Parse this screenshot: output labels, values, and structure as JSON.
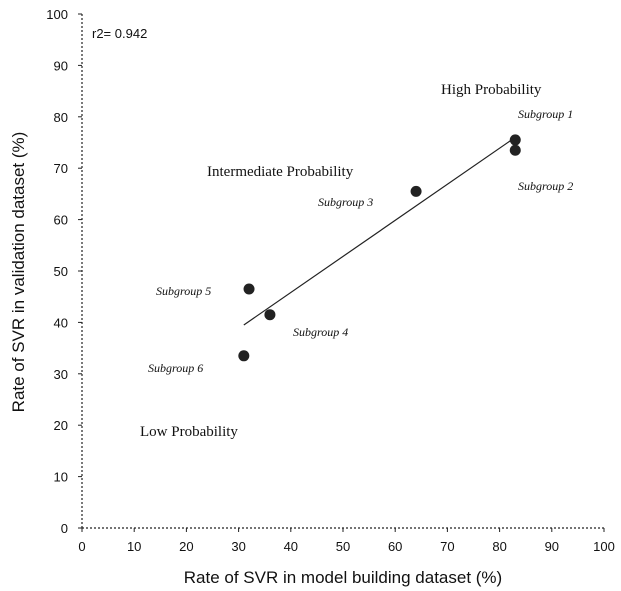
{
  "chart_data": {
    "type": "scatter",
    "xlabel": "Rate of SVR in model building dataset (%)",
    "ylabel": "Rate of SVR in validation dataset (%)",
    "xlim": [
      0,
      100
    ],
    "ylim": [
      0,
      100
    ],
    "xticks": [
      0,
      10,
      20,
      30,
      40,
      50,
      60,
      70,
      80,
      90,
      100
    ],
    "yticks": [
      0,
      10,
      20,
      30,
      40,
      50,
      60,
      70,
      80,
      90,
      100
    ],
    "r2_label": "r2= 0.942",
    "grid": false,
    "points": [
      {
        "label": "Subgroup 1",
        "x": 83,
        "y": 75.5
      },
      {
        "label": "Subgroup 2",
        "x": 83,
        "y": 73.5
      },
      {
        "label": "Subgroup 3",
        "x": 64,
        "y": 65.5
      },
      {
        "label": "Subgroup 4",
        "x": 36,
        "y": 41.5
      },
      {
        "label": "Subgroup 5",
        "x": 32,
        "y": 46.5
      },
      {
        "label": "Subgroup 6",
        "x": 31,
        "y": 33.5
      }
    ],
    "trendline": {
      "x": [
        31,
        83
      ],
      "y": [
        39.5,
        76
      ]
    },
    "annotations": {
      "high": "High Probability",
      "intermediate": "Intermediate Probability",
      "low": "Low Probability"
    }
  }
}
